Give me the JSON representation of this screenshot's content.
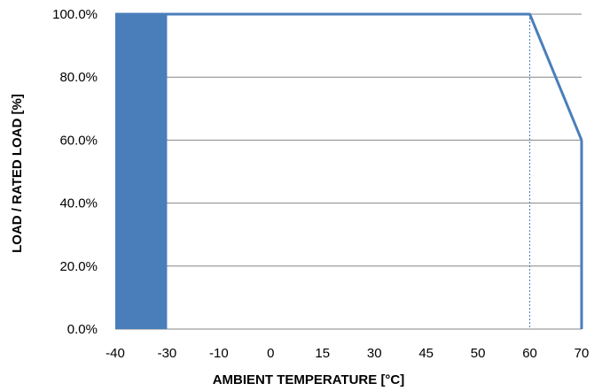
{
  "chart_data": {
    "type": "line",
    "title": "",
    "xlabel": "AMBIENT TEMPERATURE [°C]",
    "ylabel": "LOAD / RATED LOAD [%]",
    "x_ticks": [
      "-40",
      "-30",
      "-10",
      "0",
      "15",
      "30",
      "45",
      "50",
      "60",
      "70"
    ],
    "y_ticks": [
      "0.0%",
      "20.0%",
      "40.0%",
      "60.0%",
      "80.0%",
      "100.0%"
    ],
    "ylim": [
      0,
      100
    ],
    "grid": "horizontal",
    "series": [
      {
        "x": [
          "-40",
          "-30",
          "-10",
          "0",
          "15",
          "30",
          "45",
          "50",
          "60",
          "70"
        ],
        "values": [
          100,
          100,
          100,
          100,
          100,
          100,
          100,
          100,
          100,
          60
        ]
      }
    ],
    "shaded_region": {
      "x_from": "-40",
      "x_to": "-30",
      "value": 100
    },
    "reference_line": {
      "x": "60",
      "style": "dotted"
    },
    "colors": {
      "line": "#4a7ebb",
      "fill": "#4a7ebb",
      "grid": "#868686"
    }
  }
}
